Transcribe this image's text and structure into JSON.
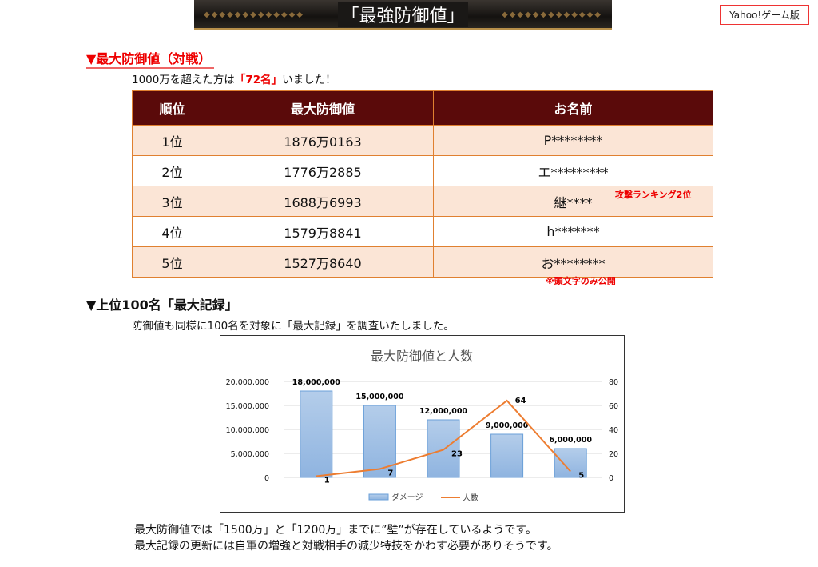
{
  "banner": {
    "title": "「最強防御値」"
  },
  "badge": "Yahoo!ゲーム版",
  "section1": {
    "heading": "▼最大防御値（対戦）",
    "intro_before": "1000万を超えた方は",
    "intro_highlight": "「72名」",
    "intro_after": "いました！"
  },
  "table": {
    "headers": [
      "順位",
      "最大防御値",
      "お名前"
    ],
    "rows": [
      [
        "1位",
        "1876万0163",
        "P********"
      ],
      [
        "2位",
        "1776万2885",
        "エ*********"
      ],
      [
        "3位",
        "1688万6993",
        "継****"
      ],
      [
        "4位",
        "1579万8841",
        "h*******"
      ],
      [
        "5位",
        "1527万8640",
        "お********"
      ]
    ],
    "row3_note": "攻撃ランキング2位",
    "footnote": "※頭文字のみ公開"
  },
  "section2": {
    "heading": "▼上位100名「最大記録」",
    "intro": "防御値も同様に100名を対象に「最大記録」を調査いたしました。"
  },
  "chart_data": {
    "type": "bar+line",
    "title": "最大防御値と人数",
    "series": [
      {
        "name": "ダメージ",
        "type": "bar",
        "axis": "left",
        "values": [
          18000000,
          15000000,
          12000000,
          9000000,
          6000000
        ],
        "color": "#9dc3e6"
      },
      {
        "name": "人数",
        "type": "line",
        "axis": "right",
        "values": [
          1,
          7,
          23,
          64,
          5
        ],
        "color": "#ed7d31"
      }
    ],
    "left_axis": {
      "ylim": [
        0,
        20000000
      ],
      "ticks": [
        "0",
        "5,000,000",
        "10,000,000",
        "15,000,000",
        "20,000,000"
      ]
    },
    "right_axis": {
      "ylim": [
        0,
        80
      ],
      "ticks": [
        "0",
        "20",
        "40",
        "60",
        "80"
      ]
    },
    "bar_labels": [
      "18,000,000",
      "15,000,000",
      "12,000,000",
      "9,000,000",
      "6,000,000"
    ],
    "line_labels": [
      "1",
      "7",
      "23",
      "64",
      "5"
    ],
    "grid": true,
    "legend": "bottom"
  },
  "conclusion": [
    "最大防御値では「1500万」と「1200万」までに”壁”が存在しているようです。",
    "最大記録の更新には自軍の増強と対戦相手の減少特技をかわす必要がありそうです。"
  ]
}
